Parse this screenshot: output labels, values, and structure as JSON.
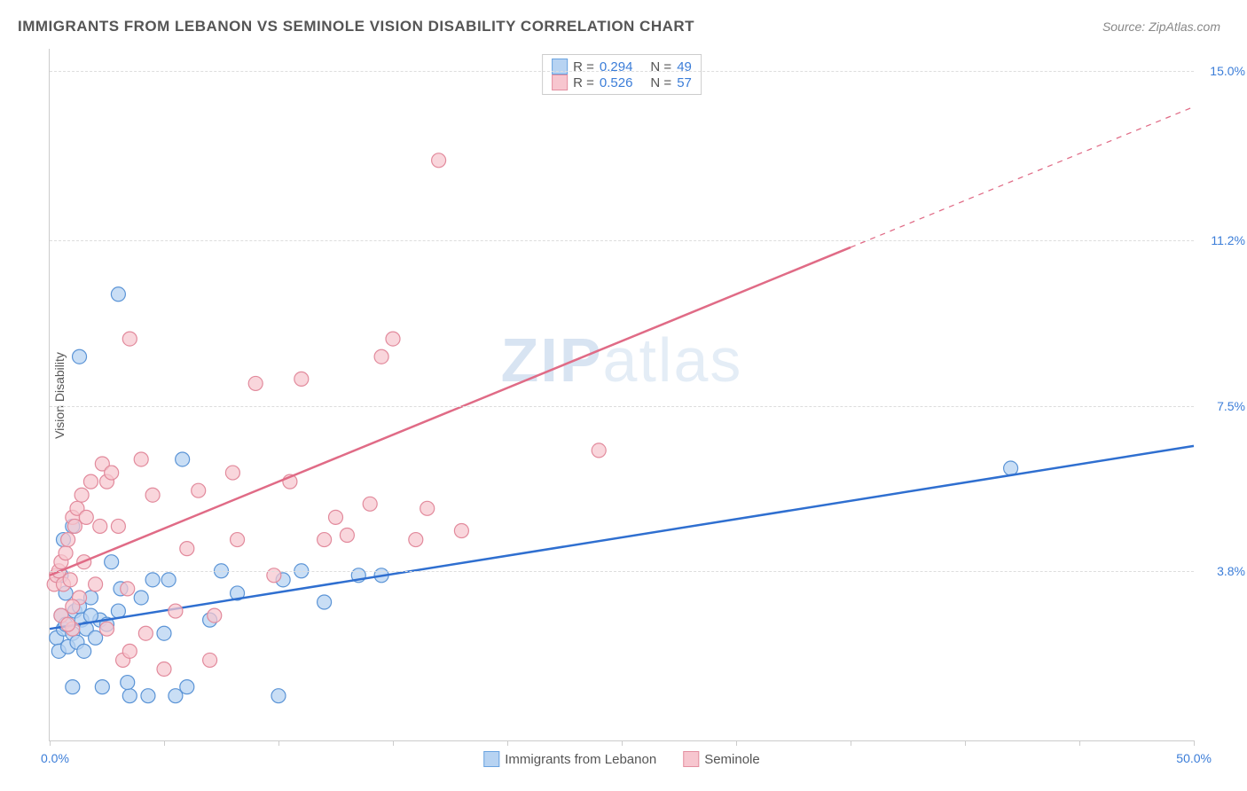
{
  "title": "IMMIGRANTS FROM LEBANON VS SEMINOLE VISION DISABILITY CORRELATION CHART",
  "source": "Source: ZipAtlas.com",
  "y_axis_label": "Vision Disability",
  "watermark_bold": "ZIP",
  "watermark_thin": "atlas",
  "chart": {
    "type": "scatter",
    "background_color": "#ffffff",
    "grid_color": "#dddddd",
    "axis_color": "#cccccc",
    "xlim": [
      0,
      50
    ],
    "ylim": [
      0,
      15.5
    ],
    "x_min_label": "0.0%",
    "x_max_label": "50.0%",
    "y_ticks": [
      {
        "value": 3.8,
        "label": "3.8%"
      },
      {
        "value": 7.5,
        "label": "7.5%"
      },
      {
        "value": 11.2,
        "label": "11.2%"
      },
      {
        "value": 15.0,
        "label": "15.0%"
      }
    ],
    "x_tick_positions": [
      0,
      5,
      10,
      15,
      20,
      25,
      30,
      35,
      40,
      45,
      50
    ],
    "legend_top": [
      {
        "swatch_fill": "#b7d3f2",
        "swatch_border": "#6aa3e0",
        "r_label": "R =",
        "r_value": "0.294",
        "n_label": "N =",
        "n_value": "49"
      },
      {
        "swatch_fill": "#f7c6cf",
        "swatch_border": "#e38fa0",
        "r_label": "R =",
        "r_value": "0.526",
        "n_label": "N =",
        "n_value": "57"
      }
    ],
    "legend_bottom": [
      {
        "swatch_fill": "#b7d3f2",
        "swatch_border": "#6aa3e0",
        "label": "Immigrants from Lebanon"
      },
      {
        "swatch_fill": "#f7c6cf",
        "swatch_border": "#e38fa0",
        "label": "Seminole"
      }
    ],
    "series": [
      {
        "name": "Immigrants from Lebanon",
        "marker_fill": "#b7d3f2",
        "marker_stroke": "#5b94d6",
        "marker_opacity": 0.75,
        "marker_radius": 8,
        "line_color": "#2f6fd0",
        "line_width": 2.5,
        "regression": {
          "x1": 0,
          "y1": 2.5,
          "x2": 50,
          "y2": 6.6,
          "dash_from_x": null
        },
        "points": [
          [
            0.3,
            2.3
          ],
          [
            0.4,
            2.0
          ],
          [
            0.5,
            2.8
          ],
          [
            0.6,
            2.5
          ],
          [
            0.7,
            2.6
          ],
          [
            0.8,
            2.1
          ],
          [
            1.0,
            2.4
          ],
          [
            1.1,
            2.9
          ],
          [
            1.2,
            2.2
          ],
          [
            1.3,
            3.0
          ],
          [
            1.4,
            2.7
          ],
          [
            1.6,
            2.5
          ],
          [
            1.8,
            3.2
          ],
          [
            1.5,
            2.0
          ],
          [
            2.0,
            2.3
          ],
          [
            2.2,
            2.7
          ],
          [
            2.3,
            1.2
          ],
          [
            2.5,
            2.6
          ],
          [
            1.0,
            1.2
          ],
          [
            3.0,
            2.9
          ],
          [
            3.5,
            1.0
          ],
          [
            3.1,
            3.4
          ],
          [
            3.4,
            1.3
          ],
          [
            4.0,
            3.2
          ],
          [
            4.3,
            1.0
          ],
          [
            4.5,
            3.6
          ],
          [
            5.0,
            2.4
          ],
          [
            5.5,
            1.0
          ],
          [
            5.2,
            3.6
          ],
          [
            5.8,
            6.3
          ],
          [
            6.0,
            1.2
          ],
          [
            7.0,
            2.7
          ],
          [
            7.5,
            3.8
          ],
          [
            8.2,
            3.3
          ],
          [
            10.0,
            1.0
          ],
          [
            10.2,
            3.6
          ],
          [
            11.0,
            3.8
          ],
          [
            12.0,
            3.1
          ],
          [
            13.5,
            3.7
          ],
          [
            14.5,
            3.7
          ],
          [
            3.0,
            10.0
          ],
          [
            1.3,
            8.6
          ],
          [
            1.0,
            4.8
          ],
          [
            0.6,
            4.5
          ],
          [
            0.5,
            3.7
          ],
          [
            0.7,
            3.3
          ],
          [
            2.7,
            4.0
          ],
          [
            42.0,
            6.1
          ],
          [
            1.8,
            2.8
          ]
        ]
      },
      {
        "name": "Seminole",
        "marker_fill": "#f7c6cf",
        "marker_stroke": "#e28a9c",
        "marker_opacity": 0.72,
        "marker_radius": 8,
        "line_color": "#e06b86",
        "line_width": 2.5,
        "regression": {
          "x1": 0,
          "y1": 3.7,
          "x2": 50,
          "y2": 14.2,
          "dash_from_x": 35
        },
        "points": [
          [
            0.2,
            3.5
          ],
          [
            0.3,
            3.7
          ],
          [
            0.4,
            3.8
          ],
          [
            0.5,
            4.0
          ],
          [
            0.6,
            3.5
          ],
          [
            0.7,
            4.2
          ],
          [
            0.8,
            4.5
          ],
          [
            0.9,
            3.6
          ],
          [
            1.0,
            5.0
          ],
          [
            1.1,
            4.8
          ],
          [
            1.2,
            5.2
          ],
          [
            1.3,
            3.2
          ],
          [
            1.4,
            5.5
          ],
          [
            1.5,
            4.0
          ],
          [
            1.6,
            5.0
          ],
          [
            1.8,
            5.8
          ],
          [
            1.0,
            3.0
          ],
          [
            2.0,
            3.5
          ],
          [
            2.2,
            4.8
          ],
          [
            2.3,
            6.2
          ],
          [
            2.5,
            2.5
          ],
          [
            2.5,
            5.8
          ],
          [
            2.7,
            6.0
          ],
          [
            3.0,
            4.8
          ],
          [
            3.2,
            1.8
          ],
          [
            3.5,
            2.0
          ],
          [
            3.4,
            3.4
          ],
          [
            3.5,
            9.0
          ],
          [
            4.0,
            6.3
          ],
          [
            4.2,
            2.4
          ],
          [
            4.5,
            5.5
          ],
          [
            5.0,
            1.6
          ],
          [
            5.5,
            2.9
          ],
          [
            6.0,
            4.3
          ],
          [
            6.5,
            5.6
          ],
          [
            7.0,
            1.8
          ],
          [
            7.2,
            2.8
          ],
          [
            8.0,
            6.0
          ],
          [
            8.2,
            4.5
          ],
          [
            9.0,
            8.0
          ],
          [
            9.8,
            3.7
          ],
          [
            10.5,
            5.8
          ],
          [
            11.0,
            8.1
          ],
          [
            12.0,
            4.5
          ],
          [
            12.5,
            5.0
          ],
          [
            13.0,
            4.6
          ],
          [
            14.0,
            5.3
          ],
          [
            14.5,
            8.6
          ],
          [
            15.0,
            9.0
          ],
          [
            16.0,
            4.5
          ],
          [
            16.5,
            5.2
          ],
          [
            17.0,
            13.0
          ],
          [
            18.0,
            4.7
          ],
          [
            24.0,
            6.5
          ],
          [
            0.5,
            2.8
          ],
          [
            1.0,
            2.5
          ],
          [
            0.8,
            2.6
          ]
        ]
      }
    ]
  }
}
